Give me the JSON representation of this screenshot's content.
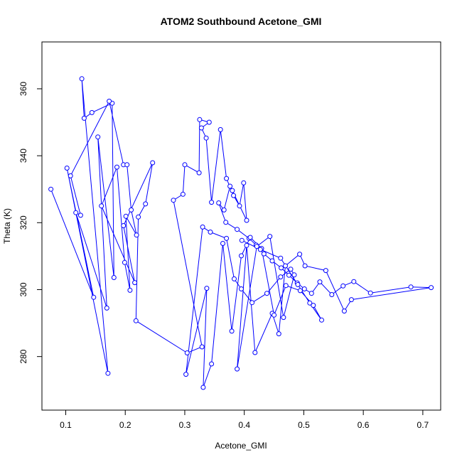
{
  "chart_data": {
    "type": "line",
    "title": "ATOM2 Southbound Acetone_GMI",
    "xlabel": "Acetone_GMI",
    "ylabel": "Theta (K)",
    "xlim": [
      0.06,
      0.73
    ],
    "ylim": [
      264,
      374
    ],
    "xticks": [
      0.1,
      0.2,
      0.3,
      0.4,
      0.5,
      0.6,
      0.7
    ],
    "yticks": [
      280,
      300,
      320,
      340,
      360
    ],
    "xtick_labels": [
      "0.1",
      "0.2",
      "0.3",
      "0.4",
      "0.5",
      "0.6",
      "0.7"
    ],
    "ytick_labels": [
      "280",
      "300",
      "320",
      "340",
      "360"
    ],
    "line_color": "#0000ff",
    "marker": "open-circle",
    "grid": false,
    "series": [
      {
        "x": [
          0.075,
          0.147,
          0.102,
          0.171,
          0.127,
          0.131,
          0.144,
          0.178,
          0.181,
          0.154,
          0.169,
          0.117,
          0.125,
          0.108,
          0.173,
          0.197,
          0.203,
          0.21,
          0.219,
          0.201,
          0.208,
          0.199,
          0.186,
          0.16,
          0.216,
          0.197,
          0.246,
          0.234,
          0.222,
          0.218,
          0.304,
          0.329,
          0.281,
          0.297,
          0.3,
          0.324,
          0.325,
          0.341,
          0.328,
          0.336,
          0.345,
          0.36,
          0.37,
          0.382,
          0.392,
          0.399,
          0.404,
          0.38,
          0.376,
          0.366,
          0.357,
          0.369,
          0.388,
          0.408,
          0.42,
          0.433,
          0.447,
          0.462,
          0.475,
          0.489,
          0.501,
          0.513,
          0.527,
          0.547,
          0.566,
          0.584,
          0.612,
          0.68,
          0.714,
          0.58,
          0.568,
          0.537,
          0.502,
          0.493,
          0.469,
          0.458,
          0.447,
          0.418,
          0.404,
          0.388,
          0.421,
          0.443,
          0.466,
          0.484,
          0.478,
          0.461,
          0.438,
          0.413,
          0.395,
          0.383,
          0.37,
          0.343,
          0.33,
          0.302,
          0.337,
          0.331,
          0.345,
          0.364,
          0.379,
          0.395,
          0.41,
          0.429,
          0.45,
          0.47,
          0.494,
          0.516,
          0.53,
          0.51,
          0.49,
          0.461,
          0.427,
          0.396
        ],
        "y": [
          330.0,
          297.7,
          336.3,
          275.0,
          363.0,
          351.2,
          352.9,
          355.7,
          303.6,
          345.6,
          294.5,
          323.0,
          322.2,
          334.0,
          356.3,
          337.3,
          337.3,
          323.8,
          316.3,
          321.9,
          299.8,
          308.1,
          336.6,
          325.0,
          302.1,
          319.1,
          337.9,
          325.6,
          321.7,
          290.7,
          281.1,
          282.9,
          326.7,
          328.5,
          337.3,
          334.9,
          350.8,
          350.0,
          348.3,
          345.3,
          326.1,
          347.8,
          333.2,
          328.1,
          325.0,
          331.9,
          320.7,
          329.6,
          330.9,
          323.8,
          325.9,
          320.1,
          318.0,
          315.3,
          313.3,
          310.7,
          308.6,
          306.5,
          304.3,
          302.0,
          300.2,
          298.9,
          302.3,
          298.5,
          301.1,
          302.4,
          299.0,
          300.8,
          300.6,
          297.0,
          293.6,
          305.7,
          307.1,
          310.6,
          307.1,
          286.8,
          292.9,
          281.2,
          313.2,
          276.3,
          312.9,
          315.9,
          291.7,
          304.4,
          306.1,
          303.8,
          298.9,
          296.1,
          300.2,
          303.2,
          315.3,
          317.2,
          318.7,
          274.7,
          300.4,
          270.8,
          277.8,
          313.8,
          287.6,
          310.1,
          315.6,
          312.3,
          292.4,
          301.2,
          299.7,
          295.3,
          290.9,
          296.0,
          301.5,
          309.4,
          312.0,
          314.7
        ]
      }
    ]
  }
}
